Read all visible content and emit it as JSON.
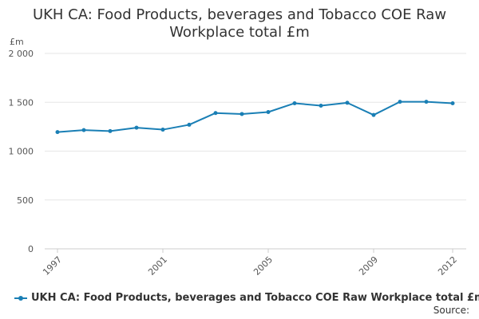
{
  "chart_data": {
    "type": "line",
    "title_lines": [
      "UKH CA: Food Products, beverages and Tobacco COE Raw",
      "Workplace total £m"
    ],
    "unit_label": "£m",
    "x": [
      1997,
      1998,
      1999,
      2000,
      2001,
      2002,
      2003,
      2004,
      2005,
      2006,
      2007,
      2008,
      2009,
      2010,
      2011,
      2012
    ],
    "x_tick_labels": [
      "1997",
      "2001",
      "2005",
      "2009",
      "2012"
    ],
    "x_tick_values": [
      1997,
      2001,
      2005,
      2009,
      2012
    ],
    "y_tick_labels": [
      "0",
      "500",
      "1 000",
      "1 500",
      "2 000"
    ],
    "y_tick_values": [
      0,
      500,
      1000,
      1500,
      2000
    ],
    "ylim": [
      0,
      2000
    ],
    "grid": true,
    "series": [
      {
        "name": "UKH CA: Food Products, beverages and Tobacco COE Raw Workplace total £m",
        "color": "#1a7fb5",
        "values": [
          1195,
          1215,
          1205,
          1240,
          1220,
          1270,
          1390,
          1380,
          1400,
          1490,
          1465,
          1495,
          1370,
          1505,
          1505,
          1490
        ]
      }
    ],
    "legend_position": "bottom",
    "source_label": "Source:"
  }
}
